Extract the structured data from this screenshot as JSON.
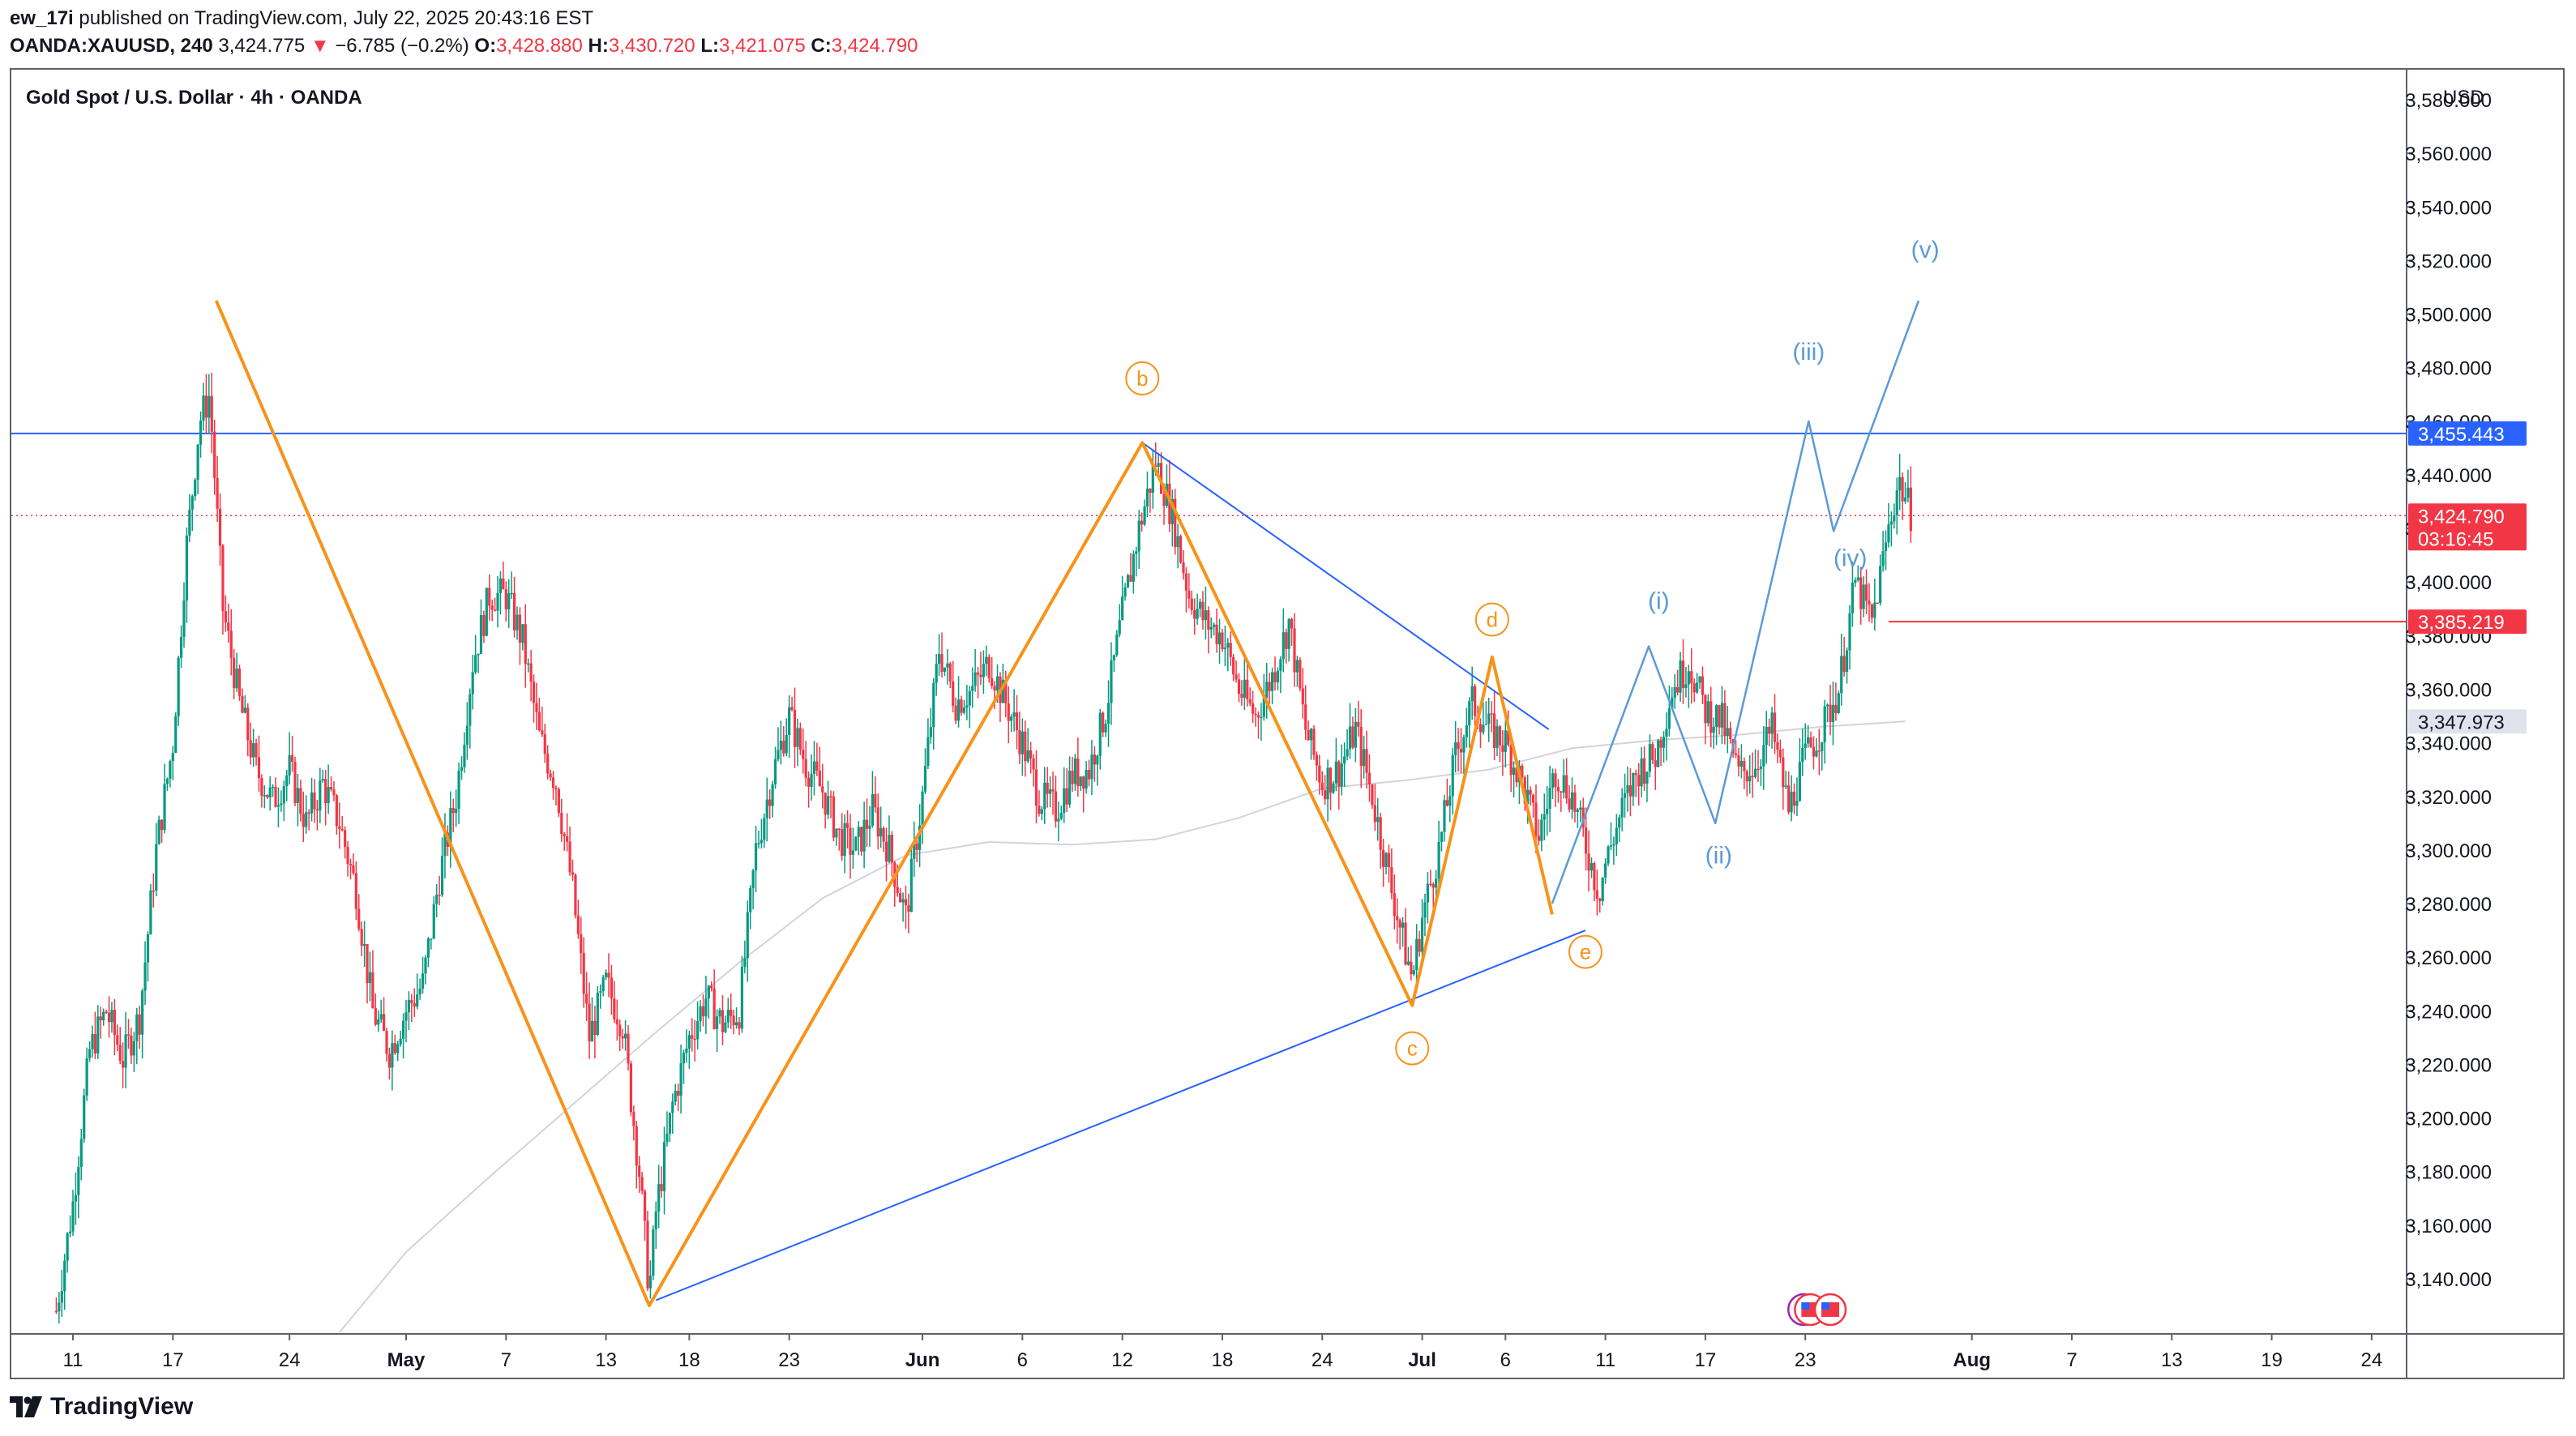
{
  "header": {
    "author": "ew_17i",
    "published_text": "published on TradingView.com, July 22, 2025 20:43:16 EST",
    "symbol": "OANDA:XAUUSD, 240",
    "last": "3,424.775",
    "change_arrow": "▼",
    "change": "−6.785 (−0.2%)",
    "open_label": "O:",
    "open": "3,428.880",
    "high_label": "H:",
    "high": "3,430.720",
    "low_label": "L:",
    "low": "3,421.075",
    "close_label": "C:",
    "close": "3,424.790"
  },
  "legend_title": "Gold Spot / U.S. Dollar · 4h · OANDA",
  "footer": {
    "brand": "TradingView"
  },
  "chart_data": {
    "type": "candlestick",
    "currency": "USD",
    "ylim": [
      3122,
      3590
    ],
    "y_ticks": [
      "3,580.000",
      "3,560.000",
      "3,540.000",
      "3,520.000",
      "3,500.000",
      "3,480.000",
      "3,460.000",
      "3,440.000",
      "3,420.000",
      "3,400.000",
      "3,380.000",
      "3,360.000",
      "3,340.000",
      "3,320.000",
      "3,300.000",
      "3,280.000",
      "3,260.000",
      "3,240.000",
      "3,220.000",
      "3,200.000",
      "3,180.000",
      "3,160.000",
      "3,140.000"
    ],
    "y_tick_values": [
      3580,
      3560,
      3540,
      3520,
      3500,
      3480,
      3460,
      3440,
      3420,
      3400,
      3380,
      3360,
      3340,
      3320,
      3300,
      3280,
      3260,
      3240,
      3220,
      3200,
      3180,
      3160,
      3140
    ],
    "x_ticks": [
      {
        "label": "11",
        "day": 0,
        "bold": false
      },
      {
        "label": "17",
        "day": 6,
        "bold": false
      },
      {
        "label": "24",
        "day": 13,
        "bold": false
      },
      {
        "label": "May",
        "day": 20,
        "bold": true
      },
      {
        "label": "7",
        "day": 26,
        "bold": false
      },
      {
        "label": "13",
        "day": 32,
        "bold": false
      },
      {
        "label": "18",
        "day": 37,
        "bold": false
      },
      {
        "label": "23",
        "day": 43,
        "bold": false
      },
      {
        "label": "Jun",
        "day": 51,
        "bold": true
      },
      {
        "label": "6",
        "day": 57,
        "bold": false
      },
      {
        "label": "12",
        "day": 63,
        "bold": false
      },
      {
        "label": "18",
        "day": 69,
        "bold": false
      },
      {
        "label": "24",
        "day": 75,
        "bold": false
      },
      {
        "label": "Jul",
        "day": 81,
        "bold": true
      },
      {
        "label": "6",
        "day": 86,
        "bold": false
      },
      {
        "label": "11",
        "day": 92,
        "bold": false
      },
      {
        "label": "17",
        "day": 98,
        "bold": false
      },
      {
        "label": "23",
        "day": 104,
        "bold": false
      },
      {
        "label": "Aug",
        "day": 114,
        "bold": true
      },
      {
        "label": "7",
        "day": 120,
        "bold": false
      },
      {
        "label": "13",
        "day": 126,
        "bold": false
      },
      {
        "label": "19",
        "day": 132,
        "bold": false
      },
      {
        "label": "24",
        "day": 138,
        "bold": false
      }
    ],
    "price_path": [
      [
        -1,
        3128
      ],
      [
        0,
        3168
      ],
      [
        1,
        3225
      ],
      [
        2,
        3240
      ],
      [
        3,
        3222
      ],
      [
        4,
        3238
      ],
      [
        5,
        3300
      ],
      [
        6,
        3340
      ],
      [
        6.8,
        3412
      ],
      [
        7.6,
        3460
      ],
      [
        8.2,
        3470
      ],
      [
        9,
        3390
      ],
      [
        10,
        3355
      ],
      [
        11,
        3330
      ],
      [
        12,
        3318
      ],
      [
        13,
        3330
      ],
      [
        14,
        3310
      ],
      [
        15,
        3325
      ],
      [
        16,
        3310
      ],
      [
        17,
        3285
      ],
      [
        18,
        3240
      ],
      [
        19,
        3225
      ],
      [
        20,
        3240
      ],
      [
        21,
        3250
      ],
      [
        22,
        3290
      ],
      [
        23,
        3320
      ],
      [
        24,
        3370
      ],
      [
        25,
        3395
      ],
      [
        26,
        3395
      ],
      [
        27,
        3378
      ],
      [
        28,
        3342
      ],
      [
        29,
        3325
      ],
      [
        30,
        3285
      ],
      [
        31,
        3230
      ],
      [
        32,
        3250
      ],
      [
        33,
        3235
      ],
      [
        34,
        3180
      ],
      [
        34.6,
        3135
      ],
      [
        35,
        3165
      ],
      [
        36,
        3205
      ],
      [
        37,
        3230
      ],
      [
        38,
        3245
      ],
      [
        39,
        3235
      ],
      [
        40,
        3240
      ],
      [
        41,
        3300
      ],
      [
        42,
        3328
      ],
      [
        43,
        3350
      ],
      [
        44,
        3332
      ],
      [
        45,
        3322
      ],
      [
        46,
        3305
      ],
      [
        47,
        3300
      ],
      [
        48,
        3315
      ],
      [
        49,
        3300
      ],
      [
        50,
        3275
      ],
      [
        51,
        3320
      ],
      [
        52,
        3375
      ],
      [
        53,
        3355
      ],
      [
        54,
        3360
      ],
      [
        55,
        3370
      ],
      [
        56,
        3355
      ],
      [
        57,
        3340
      ],
      [
        58,
        3320
      ],
      [
        59,
        3315
      ],
      [
        60,
        3328
      ],
      [
        61,
        3330
      ],
      [
        62,
        3352
      ],
      [
        63,
        3388
      ],
      [
        64,
        3420
      ],
      [
        65,
        3445
      ],
      [
        66,
        3425
      ],
      [
        67,
        3395
      ],
      [
        68,
        3385
      ],
      [
        69,
        3380
      ],
      [
        70,
        3360
      ],
      [
        71,
        3350
      ],
      [
        72,
        3365
      ],
      [
        73,
        3385
      ],
      [
        74,
        3345
      ],
      [
        75,
        3325
      ],
      [
        76,
        3330
      ],
      [
        77,
        3345
      ],
      [
        78,
        3320
      ],
      [
        79,
        3290
      ],
      [
        80,
        3262
      ],
      [
        80.4,
        3252
      ],
      [
        81,
        3275
      ],
      [
        82,
        3300
      ],
      [
        83,
        3335
      ],
      [
        84,
        3355
      ],
      [
        85,
        3345
      ],
      [
        86,
        3340
      ],
      [
        87,
        3325
      ],
      [
        88,
        3305
      ],
      [
        89,
        3330
      ],
      [
        90,
        3320
      ],
      [
        91,
        3298
      ],
      [
        91.6,
        3284
      ],
      [
        92,
        3295
      ],
      [
        93,
        3315
      ],
      [
        94,
        3330
      ],
      [
        95,
        3335
      ],
      [
        96,
        3360
      ],
      [
        97,
        3370
      ],
      [
        98,
        3352
      ],
      [
        99,
        3348
      ],
      [
        100,
        3328
      ],
      [
        101,
        3332
      ],
      [
        102,
        3345
      ],
      [
        103,
        3315
      ],
      [
        104,
        3335
      ],
      [
        105,
        3345
      ],
      [
        106,
        3360
      ],
      [
        107,
        3400
      ],
      [
        108,
        3385
      ],
      [
        109,
        3420
      ],
      [
        109.6,
        3438
      ],
      [
        110.4,
        3424.79
      ]
    ],
    "moving_average": [
      [
        16,
        3120
      ],
      [
        20,
        3150
      ],
      [
        25,
        3178
      ],
      [
        30,
        3205
      ],
      [
        35,
        3232
      ],
      [
        40,
        3258
      ],
      [
        45,
        3282
      ],
      [
        50,
        3298
      ],
      [
        55,
        3303
      ],
      [
        60,
        3302
      ],
      [
        65,
        3304
      ],
      [
        70,
        3312
      ],
      [
        75,
        3323
      ],
      [
        80,
        3326
      ],
      [
        85,
        3330
      ],
      [
        90,
        3338
      ],
      [
        95,
        3341
      ],
      [
        100,
        3343
      ],
      [
        105,
        3346
      ],
      [
        110,
        3348
      ]
    ],
    "horizontal_lines": [
      {
        "price": 3455.443,
        "color": "#2962ff",
        "label": "3,455.443"
      },
      {
        "price": 3424.79,
        "color": "#f23645",
        "dotted": true,
        "label": "3,424.790",
        "sublabel": "03:16:45"
      },
      {
        "price": 3385.219,
        "color": "#f23645",
        "from_day": 109,
        "label": "3,385.219"
      },
      {
        "price": 3347.973,
        "color": "#e0e3eb",
        "label": "3,347.973",
        "grey": true
      }
    ],
    "triangle_wave": {
      "color": "#f7931a",
      "points": [
        [
          8.6,
          3505
        ],
        [
          34.6,
          3130
        ],
        [
          64.2,
          3452
        ],
        [
          80.4,
          3242
        ],
        [
          85.2,
          3372
        ],
        [
          88.8,
          3276
        ]
      ],
      "labels": [
        {
          "text": "b",
          "day": 64.2,
          "price": 3476
        },
        {
          "text": "c",
          "day": 80.4,
          "price": 3226
        },
        {
          "text": "d",
          "day": 85.2,
          "price": 3386
        },
        {
          "text": "e",
          "day": 90.8,
          "price": 3262
        }
      ]
    },
    "trendlines": {
      "color": "#2962ff",
      "lines": [
        [
          [
            35,
            3132
          ],
          [
            90.8,
            3270
          ]
        ],
        [
          [
            64.2,
            3452
          ],
          [
            88.6,
            3345
          ]
        ]
      ]
    },
    "impulse_wave": {
      "color": "#5b9bd5",
      "points": [
        [
          88.8,
          3280
        ],
        [
          94.6,
          3376
        ],
        [
          98.6,
          3310
        ],
        [
          104.2,
          3460
        ],
        [
          105.7,
          3419
        ],
        [
          110.8,
          3505
        ]
      ],
      "labels": [
        {
          "text": "(i)",
          "day": 95.2,
          "price": 3390
        },
        {
          "text": "(ii)",
          "day": 98.8,
          "price": 3295
        },
        {
          "text": "(iii)",
          "day": 104.2,
          "price": 3483
        },
        {
          "text": "(iv)",
          "day": 106.7,
          "price": 3406
        },
        {
          "text": "(v)",
          "day": 111.2,
          "price": 3521
        }
      ]
    }
  }
}
